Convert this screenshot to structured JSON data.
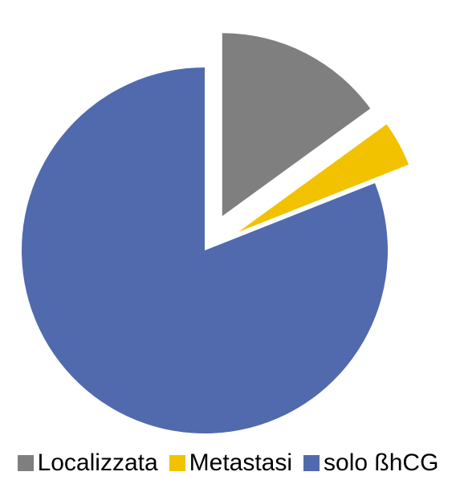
{
  "chart_data": {
    "type": "pie",
    "title": "",
    "slices": [
      {
        "label": "Localizzata",
        "value": 15,
        "color": "#7f7f7f",
        "exploded": true
      },
      {
        "label": "Metastasi",
        "value": 4,
        "color": "#f2c200",
        "exploded": true
      },
      {
        "label": "solo ßhCG",
        "value": 81,
        "color": "#506aad",
        "exploded": false
      }
    ],
    "legend_position": "bottom",
    "start_angle_deg": 0,
    "direction": "clockwise"
  }
}
